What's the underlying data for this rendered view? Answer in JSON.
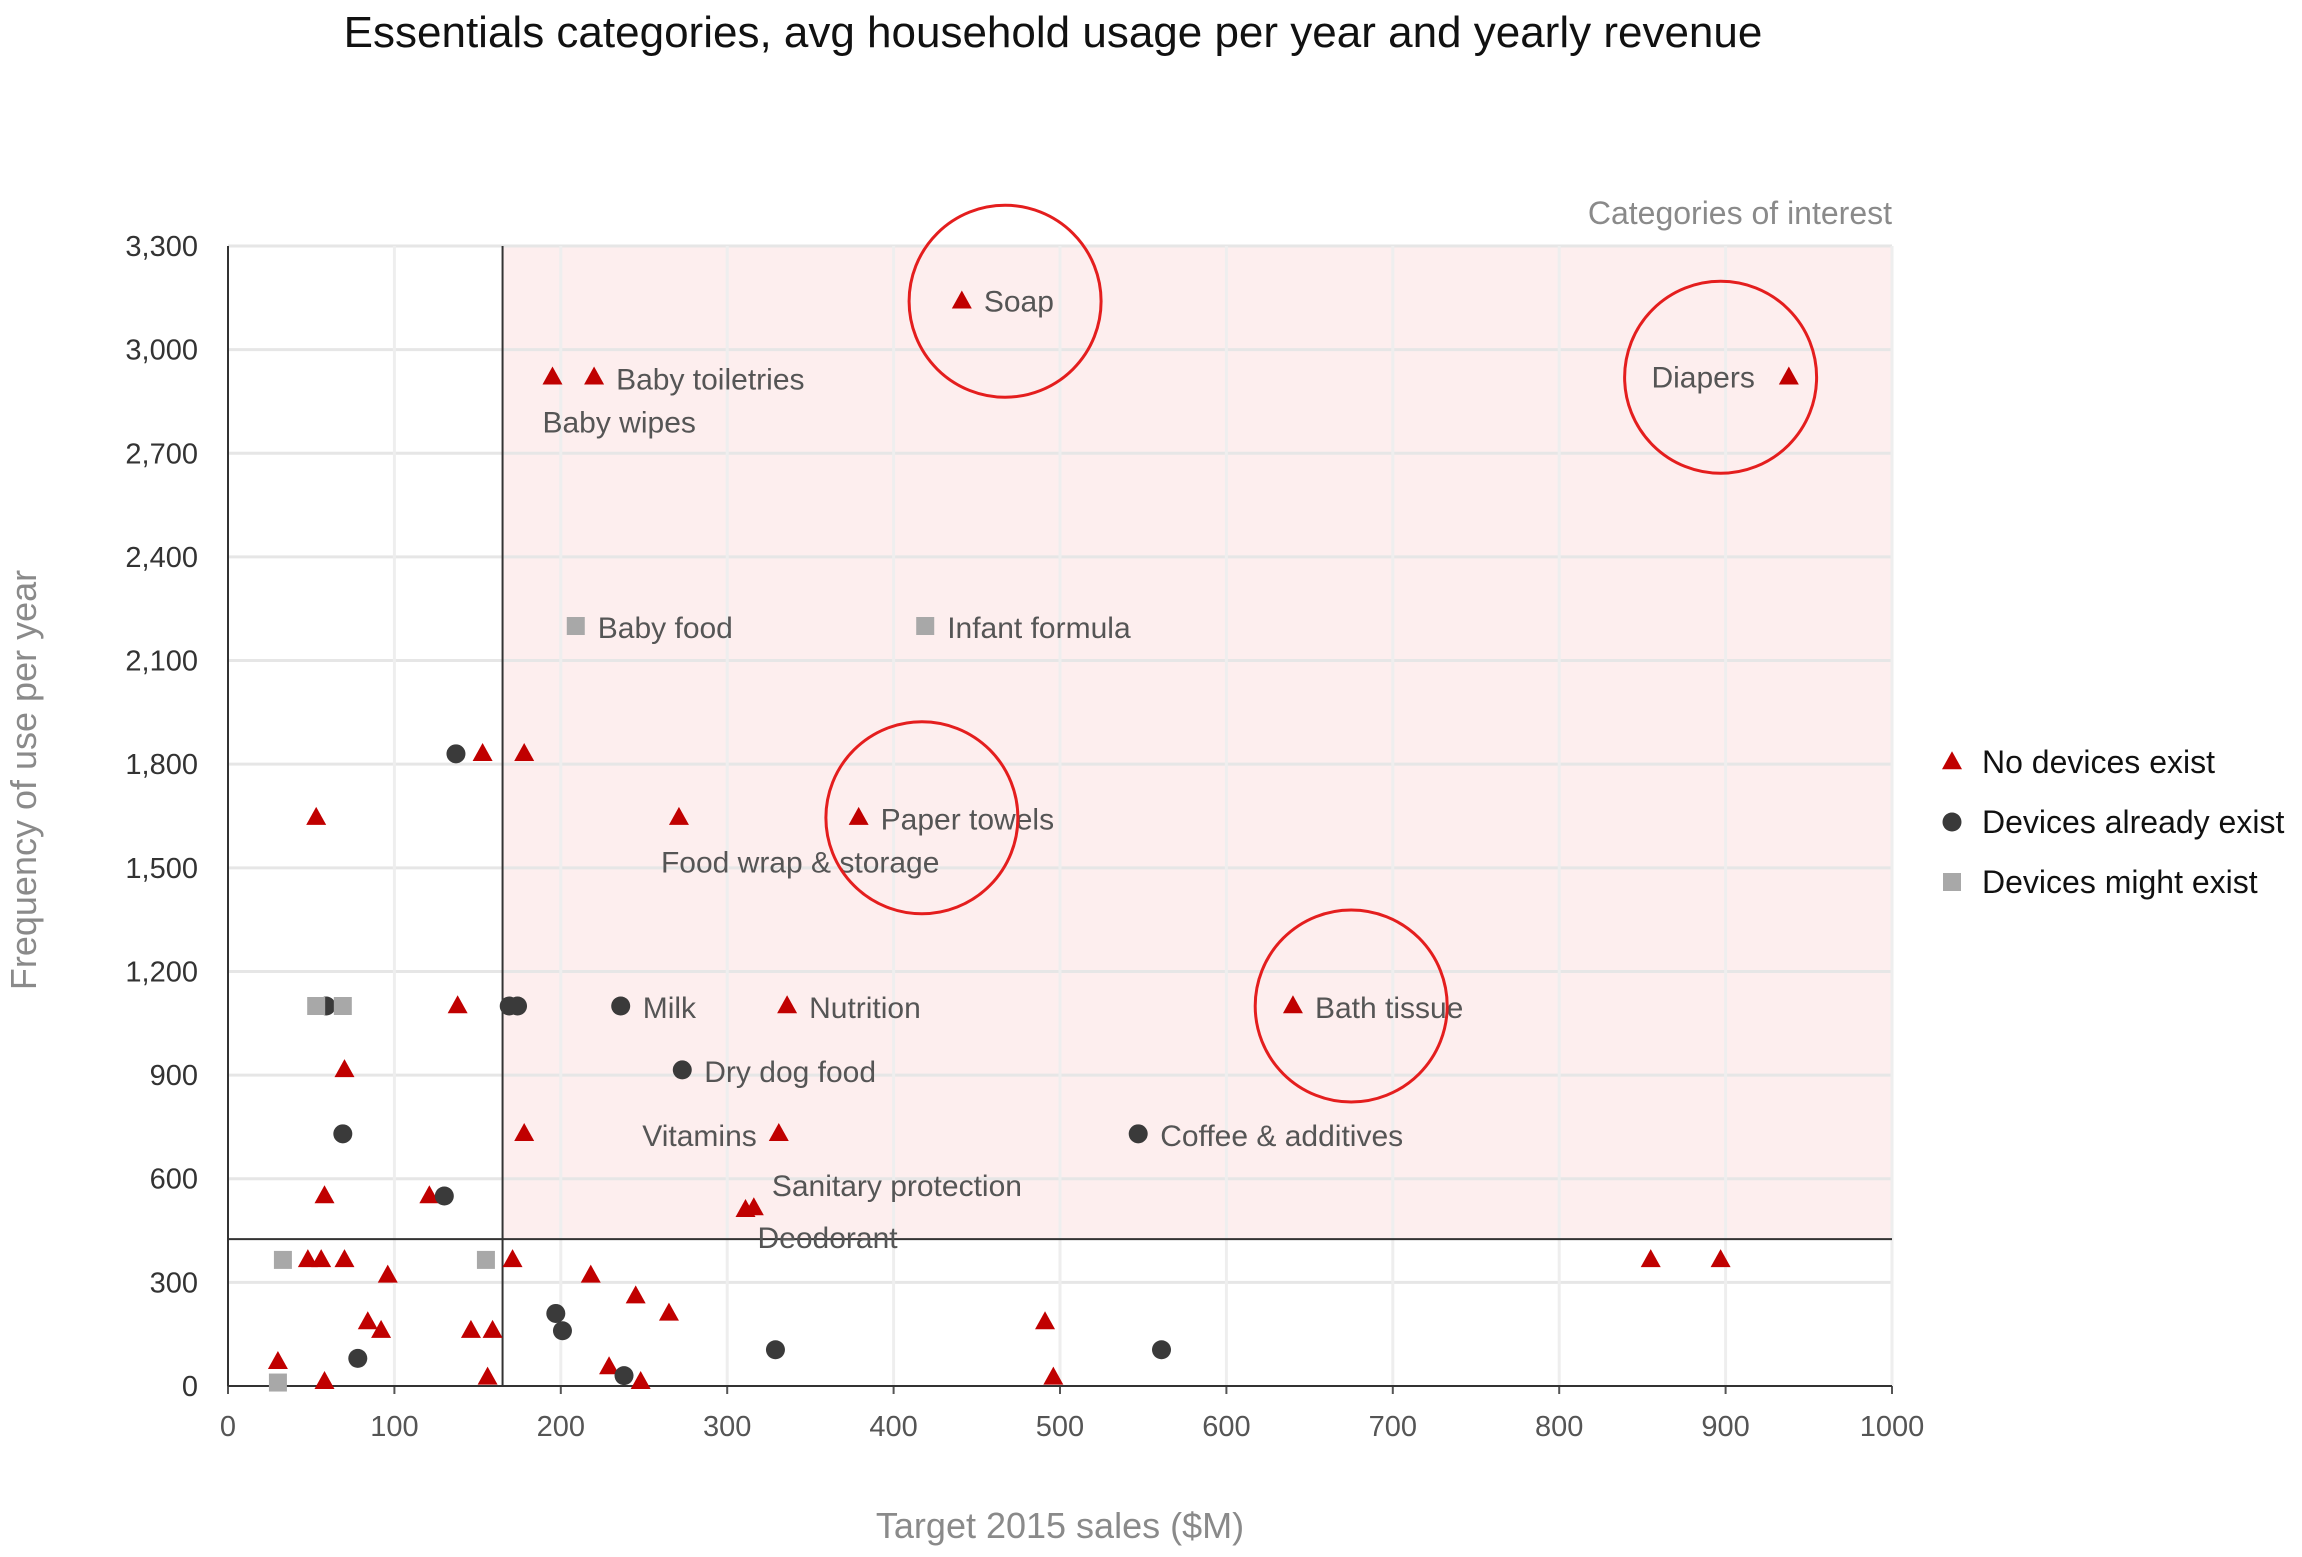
{
  "chart_data": {
    "type": "scatter",
    "title": "Essentials categories, avg household usage per year and yearly revenue",
    "xlabel": "Target 2015 sales ($M)",
    "ylabel": "Frequency of use per year",
    "xlim": [
      0,
      1000
    ],
    "ylim": [
      0,
      3300
    ],
    "x_ticks": [
      "0",
      "100",
      "200",
      "300",
      "400",
      "500",
      "600",
      "700",
      "800",
      "900",
      "1000"
    ],
    "y_ticks": [
      "0",
      "300",
      "600",
      "900",
      "1,200",
      "1,500",
      "1,800",
      "2,100",
      "2,400",
      "2,700",
      "3,000",
      "3,300"
    ],
    "grid": true,
    "legend_position": "right",
    "region_label": "Categories of interest",
    "region": {
      "x_min": 165,
      "y_min": 425
    },
    "colors": {
      "no_devices": "#c00000",
      "devices_exist": "#3a3a3a",
      "devices_might": "#a8a8a8",
      "region_fill": "#fdeeee",
      "highlight_circle": "#e41e1e"
    },
    "series": [
      {
        "name": "No devices exist",
        "marker": "triangle",
        "points": [
          {
            "x": 441,
            "y": 3140,
            "label": "Soap"
          },
          {
            "x": 938,
            "y": 2920,
            "label": "Diapers"
          },
          {
            "x": 195,
            "y": 2920,
            "label": "Baby wipes"
          },
          {
            "x": 220,
            "y": 2920,
            "label": "Baby toiletries"
          },
          {
            "x": 153,
            "y": 1830,
            "label": ""
          },
          {
            "x": 178,
            "y": 1830,
            "label": ""
          },
          {
            "x": 53,
            "y": 1645,
            "label": ""
          },
          {
            "x": 271,
            "y": 1645,
            "label": "Food wrap & storage"
          },
          {
            "x": 379,
            "y": 1645,
            "label": "Paper towels"
          },
          {
            "x": 138,
            "y": 1100,
            "label": ""
          },
          {
            "x": 336,
            "y": 1100,
            "label": "Nutrition"
          },
          {
            "x": 640,
            "y": 1100,
            "label": "Bath tissue"
          },
          {
            "x": 70,
            "y": 915,
            "label": ""
          },
          {
            "x": 178,
            "y": 730,
            "label": ""
          },
          {
            "x": 331,
            "y": 730,
            "label": "Vitamins"
          },
          {
            "x": 58,
            "y": 550,
            "label": ""
          },
          {
            "x": 121,
            "y": 550,
            "label": ""
          },
          {
            "x": 311,
            "y": 510,
            "label": "Deodorant"
          },
          {
            "x": 316,
            "y": 515,
            "label": "Sanitary protection"
          },
          {
            "x": 48,
            "y": 365,
            "label": ""
          },
          {
            "x": 56,
            "y": 365,
            "label": ""
          },
          {
            "x": 70,
            "y": 365,
            "label": ""
          },
          {
            "x": 171,
            "y": 365,
            "label": ""
          },
          {
            "x": 855,
            "y": 365,
            "label": ""
          },
          {
            "x": 897,
            "y": 365,
            "label": ""
          },
          {
            "x": 96,
            "y": 320,
            "label": ""
          },
          {
            "x": 218,
            "y": 320,
            "label": ""
          },
          {
            "x": 245,
            "y": 260,
            "label": ""
          },
          {
            "x": 265,
            "y": 210,
            "label": ""
          },
          {
            "x": 84,
            "y": 185,
            "label": ""
          },
          {
            "x": 491,
            "y": 185,
            "label": ""
          },
          {
            "x": 92,
            "y": 160,
            "label": ""
          },
          {
            "x": 146,
            "y": 160,
            "label": ""
          },
          {
            "x": 159,
            "y": 160,
            "label": ""
          },
          {
            "x": 30,
            "y": 70,
            "label": ""
          },
          {
            "x": 229,
            "y": 55,
            "label": ""
          },
          {
            "x": 156,
            "y": 25,
            "label": ""
          },
          {
            "x": 496,
            "y": 25,
            "label": ""
          },
          {
            "x": 58,
            "y": 12,
            "label": ""
          },
          {
            "x": 248,
            "y": 12,
            "label": ""
          }
        ]
      },
      {
        "name": "Devices already exist",
        "marker": "circle",
        "points": [
          {
            "x": 137,
            "y": 1830,
            "label": ""
          },
          {
            "x": 59,
            "y": 1100,
            "label": ""
          },
          {
            "x": 169,
            "y": 1100,
            "label": ""
          },
          {
            "x": 174,
            "y": 1100,
            "label": ""
          },
          {
            "x": 236,
            "y": 1100,
            "label": "Milk"
          },
          {
            "x": 273,
            "y": 915,
            "label": "Dry dog food"
          },
          {
            "x": 69,
            "y": 730,
            "label": ""
          },
          {
            "x": 547,
            "y": 730,
            "label": "Coffee & additives"
          },
          {
            "x": 130,
            "y": 550,
            "label": ""
          },
          {
            "x": 197,
            "y": 210,
            "label": ""
          },
          {
            "x": 201,
            "y": 160,
            "label": ""
          },
          {
            "x": 329,
            "y": 105,
            "label": ""
          },
          {
            "x": 561,
            "y": 105,
            "label": ""
          },
          {
            "x": 78,
            "y": 80,
            "label": ""
          },
          {
            "x": 238,
            "y": 30,
            "label": ""
          }
        ]
      },
      {
        "name": "Devices might exist",
        "marker": "square",
        "points": [
          {
            "x": 209,
            "y": 2200,
            "label": "Baby food"
          },
          {
            "x": 419,
            "y": 2200,
            "label": "Infant formula"
          },
          {
            "x": 53,
            "y": 1100,
            "label": ""
          },
          {
            "x": 69,
            "y": 1100,
            "label": ""
          },
          {
            "x": 33,
            "y": 365,
            "label": ""
          },
          {
            "x": 155,
            "y": 365,
            "label": ""
          },
          {
            "x": 30,
            "y": 10,
            "label": ""
          }
        ]
      }
    ],
    "highlights": [
      {
        "x": 467,
        "y": 3140,
        "label": "Soap"
      },
      {
        "x": 897,
        "y": 2920,
        "label": "Diapers"
      },
      {
        "x": 417,
        "y": 1645,
        "label": "Paper towels"
      },
      {
        "x": 675,
        "y": 1100,
        "label": "Bath tissue"
      }
    ]
  }
}
